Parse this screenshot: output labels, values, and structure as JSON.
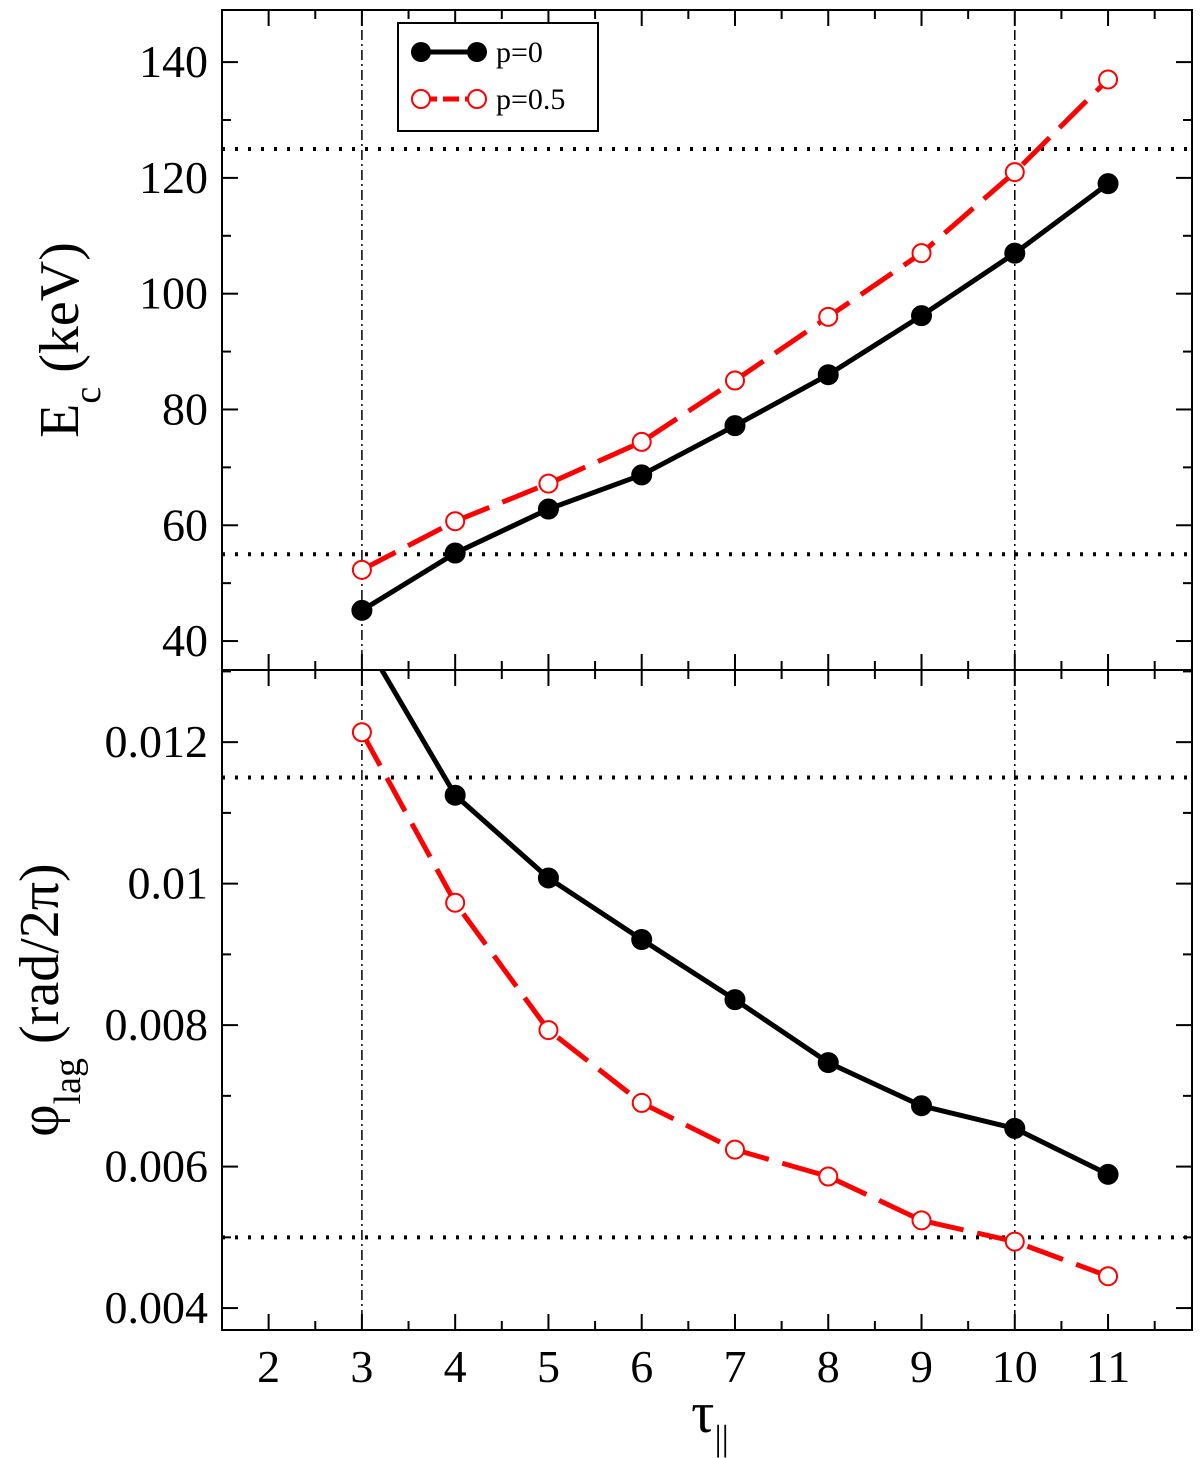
{
  "chart_data": [
    {
      "type": "line",
      "panel": "top",
      "x": [
        3,
        4,
        5,
        6,
        7,
        8,
        9,
        10,
        11
      ],
      "xlim": [
        1.5,
        11.9
      ],
      "xticks": [
        "2",
        "3",
        "4",
        "5",
        "6",
        "7",
        "8",
        "9",
        "10",
        "11"
      ],
      "ylim": [
        35,
        149
      ],
      "yticks": [
        "40",
        "60",
        "80",
        "100",
        "120",
        "140"
      ],
      "ylabel": {
        "main": "E",
        "sub": "c",
        "rest": " (keV)"
      },
      "series": [
        {
          "name": "p=0",
          "color": "#000000",
          "marker": "filled-circle",
          "dash": "solid",
          "values": [
            45.3,
            55.2,
            62.8,
            68.7,
            77.2,
            86.0,
            96.2,
            107.0,
            119.0
          ]
        },
        {
          "name": "p=0.5",
          "color": "#ff0000",
          "marker": "open-circle",
          "dash": "dashed",
          "values": [
            52.3,
            60.7,
            67.2,
            74.4,
            85.0,
            96.0,
            107.0,
            121.0,
            137.0
          ]
        }
      ],
      "hlines": [
        125,
        55
      ],
      "vlines": [
        3,
        10
      ],
      "legend": {
        "position": "top-left"
      }
    },
    {
      "type": "line",
      "panel": "bottom",
      "x": [
        3,
        4,
        5,
        6,
        7,
        8,
        9,
        10,
        11
      ],
      "xlim": [
        1.5,
        11.9
      ],
      "xticks": [
        "2",
        "3",
        "4",
        "5",
        "6",
        "7",
        "8",
        "9",
        "10",
        "11"
      ],
      "xlabel": {
        "main": "τ",
        "sub": "||"
      },
      "ylim": [
        0.00369,
        0.01302
      ],
      "yticks": [
        "0.004",
        "0.006",
        "0.008",
        "0.01",
        "0.012"
      ],
      "ylabel": {
        "main": "φ",
        "sub": "lag",
        "rest": " (rad/2π)"
      },
      "series": [
        {
          "name": "p=0",
          "color": "#000000",
          "marker": "filled-circle",
          "dash": "solid",
          "values": [
            0.0135,
            0.01125,
            0.01008,
            0.00921,
            0.00836,
            0.00747,
            0.00686,
            0.00654,
            0.00589
          ]
        },
        {
          "name": "p=0.5",
          "color": "#ff0000",
          "marker": "open-circle",
          "dash": "dashed",
          "values": [
            0.01214,
            0.00973,
            0.00793,
            0.0069,
            0.00624,
            0.00586,
            0.00524,
            0.00494,
            0.00445
          ]
        }
      ],
      "hlines": [
        0.0115,
        0.005
      ],
      "vlines": [
        3,
        10
      ]
    }
  ]
}
